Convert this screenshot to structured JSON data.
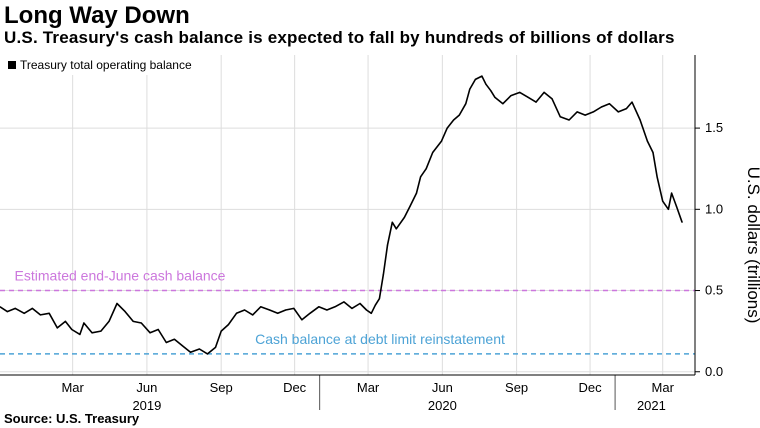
{
  "header": {
    "title": "Long Way Down",
    "subtitle": "U.S. Treasury's cash balance is expected to fall by hundreds of billions of dollars"
  },
  "footer": {
    "source": "Source: U.S. Treasury"
  },
  "colors": {
    "line": "#000000",
    "estimate": "#cc77dd",
    "debt_limit": "#4da3d6",
    "grid": "#dddddd"
  },
  "chart_data": {
    "type": "line",
    "legend": "top-left",
    "grid": true,
    "ylabel": "U.S. dollars (trillions)",
    "y_axis_side": "right",
    "ylim": [
      -0.02,
      1.95
    ],
    "yticks": [
      0.0,
      0.5,
      1.0,
      1.5
    ],
    "ytick_labels": [
      "0.0",
      "0.5",
      "1.0",
      "1.5"
    ],
    "x_range": [
      "2018-12-01",
      "2021-04-10"
    ],
    "x_month_ticks": [
      {
        "date": "2019-03-01",
        "label": "Mar"
      },
      {
        "date": "2019-06-01",
        "label": "Jun"
      },
      {
        "date": "2019-09-01",
        "label": "Sep"
      },
      {
        "date": "2019-12-01",
        "label": "Dec"
      },
      {
        "date": "2020-03-01",
        "label": "Mar"
      },
      {
        "date": "2020-06-01",
        "label": "Jun"
      },
      {
        "date": "2020-09-01",
        "label": "Sep"
      },
      {
        "date": "2020-12-01",
        "label": "Dec"
      },
      {
        "date": "2021-03-01",
        "label": "Mar"
      }
    ],
    "x_year_labels": [
      {
        "date": "2019-06-01",
        "label": "2019"
      },
      {
        "date": "2020-06-01",
        "label": "2020"
      },
      {
        "date": "2021-02-15",
        "label": "2021"
      }
    ],
    "series": [
      {
        "name": "Treasury total operating balance",
        "points": [
          [
            "2018-12-01",
            0.4
          ],
          [
            "2018-12-10",
            0.37
          ],
          [
            "2018-12-20",
            0.39
          ],
          [
            "2018-12-31",
            0.36
          ],
          [
            "2019-01-10",
            0.39
          ],
          [
            "2019-01-20",
            0.35
          ],
          [
            "2019-01-31",
            0.36
          ],
          [
            "2019-02-10",
            0.27
          ],
          [
            "2019-02-20",
            0.31
          ],
          [
            "2019-02-28",
            0.26
          ],
          [
            "2019-03-10",
            0.23
          ],
          [
            "2019-03-15",
            0.3
          ],
          [
            "2019-03-25",
            0.24
          ],
          [
            "2019-04-05",
            0.25
          ],
          [
            "2019-04-15",
            0.31
          ],
          [
            "2019-04-25",
            0.42
          ],
          [
            "2019-05-05",
            0.37
          ],
          [
            "2019-05-15",
            0.31
          ],
          [
            "2019-05-25",
            0.3
          ],
          [
            "2019-06-05",
            0.24
          ],
          [
            "2019-06-15",
            0.26
          ],
          [
            "2019-06-25",
            0.18
          ],
          [
            "2019-07-05",
            0.2
          ],
          [
            "2019-07-15",
            0.16
          ],
          [
            "2019-07-25",
            0.12
          ],
          [
            "2019-08-05",
            0.14
          ],
          [
            "2019-08-15",
            0.11
          ],
          [
            "2019-08-25",
            0.15
          ],
          [
            "2019-09-01",
            0.25
          ],
          [
            "2019-09-10",
            0.29
          ],
          [
            "2019-09-20",
            0.36
          ],
          [
            "2019-09-30",
            0.38
          ],
          [
            "2019-10-10",
            0.35
          ],
          [
            "2019-10-20",
            0.4
          ],
          [
            "2019-10-31",
            0.38
          ],
          [
            "2019-11-10",
            0.36
          ],
          [
            "2019-11-20",
            0.38
          ],
          [
            "2019-11-30",
            0.39
          ],
          [
            "2019-12-10",
            0.32
          ],
          [
            "2019-12-20",
            0.36
          ],
          [
            "2019-12-31",
            0.4
          ],
          [
            "2020-01-10",
            0.38
          ],
          [
            "2020-01-20",
            0.4
          ],
          [
            "2020-01-31",
            0.43
          ],
          [
            "2020-02-10",
            0.39
          ],
          [
            "2020-02-20",
            0.42
          ],
          [
            "2020-02-28",
            0.38
          ],
          [
            "2020-03-05",
            0.36
          ],
          [
            "2020-03-10",
            0.41
          ],
          [
            "2020-03-15",
            0.45
          ],
          [
            "2020-03-20",
            0.6
          ],
          [
            "2020-03-25",
            0.78
          ],
          [
            "2020-03-31",
            0.92
          ],
          [
            "2020-04-05",
            0.88
          ],
          [
            "2020-04-15",
            0.95
          ],
          [
            "2020-04-22",
            1.02
          ],
          [
            "2020-04-30",
            1.1
          ],
          [
            "2020-05-05",
            1.2
          ],
          [
            "2020-05-12",
            1.25
          ],
          [
            "2020-05-20",
            1.35
          ],
          [
            "2020-05-31",
            1.42
          ],
          [
            "2020-06-07",
            1.5
          ],
          [
            "2020-06-15",
            1.55
          ],
          [
            "2020-06-22",
            1.58
          ],
          [
            "2020-06-30",
            1.65
          ],
          [
            "2020-07-05",
            1.74
          ],
          [
            "2020-07-12",
            1.8
          ],
          [
            "2020-07-20",
            1.82
          ],
          [
            "2020-07-25",
            1.77
          ],
          [
            "2020-07-31",
            1.73
          ],
          [
            "2020-08-05",
            1.69
          ],
          [
            "2020-08-15",
            1.65
          ],
          [
            "2020-08-25",
            1.7
          ],
          [
            "2020-09-05",
            1.72
          ],
          [
            "2020-09-15",
            1.69
          ],
          [
            "2020-09-25",
            1.66
          ],
          [
            "2020-10-05",
            1.72
          ],
          [
            "2020-10-15",
            1.68
          ],
          [
            "2020-10-25",
            1.57
          ],
          [
            "2020-11-05",
            1.55
          ],
          [
            "2020-11-15",
            1.6
          ],
          [
            "2020-11-25",
            1.58
          ],
          [
            "2020-12-05",
            1.6
          ],
          [
            "2020-12-15",
            1.63
          ],
          [
            "2020-12-25",
            1.65
          ],
          [
            "2021-01-05",
            1.6
          ],
          [
            "2021-01-15",
            1.62
          ],
          [
            "2021-01-22",
            1.66
          ],
          [
            "2021-02-01",
            1.55
          ],
          [
            "2021-02-10",
            1.42
          ],
          [
            "2021-02-17",
            1.35
          ],
          [
            "2021-02-22",
            1.2
          ],
          [
            "2021-03-01",
            1.05
          ],
          [
            "2021-03-08",
            1.0
          ],
          [
            "2021-03-12",
            1.1
          ],
          [
            "2021-03-18",
            1.02
          ],
          [
            "2021-03-25",
            0.92
          ]
        ]
      }
    ],
    "reference_lines": [
      {
        "y": 0.5,
        "label": "Estimated end-June cash balance",
        "color": "#cc77dd"
      },
      {
        "y": 0.11,
        "label": "Cash balance at debt limit reinstatement",
        "color": "#4da3d6"
      }
    ]
  }
}
